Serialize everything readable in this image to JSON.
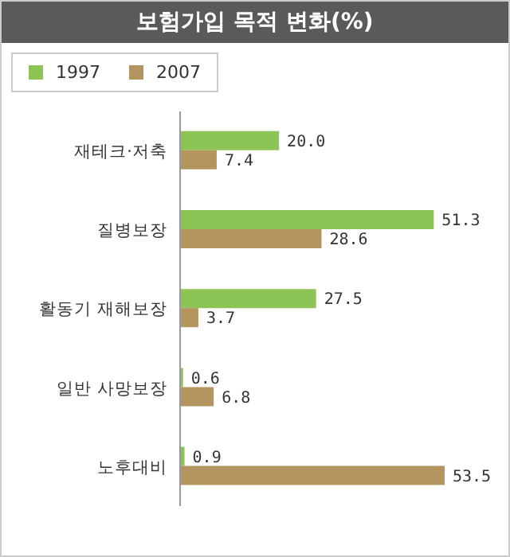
{
  "chart_data": {
    "type": "bar",
    "orientation": "horizontal",
    "title": "보험가입 목적 변화(%)",
    "categories": [
      "재테크·저축",
      "질병보장",
      "활동기 재해보장",
      "일반 사망보장",
      "노후대비"
    ],
    "series": [
      {
        "name": "1997",
        "color": "#8cc555",
        "values": [
          20.0,
          51.3,
          27.5,
          0.6,
          0.9
        ],
        "value_labels": [
          "20.0",
          "51.3",
          "27.5",
          "0.6",
          "0.9"
        ]
      },
      {
        "name": "2007",
        "color": "#b4945f",
        "values": [
          7.4,
          28.6,
          3.7,
          6.8,
          53.5
        ],
        "value_labels": [
          "7.4",
          "28.6",
          "3.7",
          "6.8",
          "53.5"
        ]
      }
    ],
    "legend": "top left"
  }
}
